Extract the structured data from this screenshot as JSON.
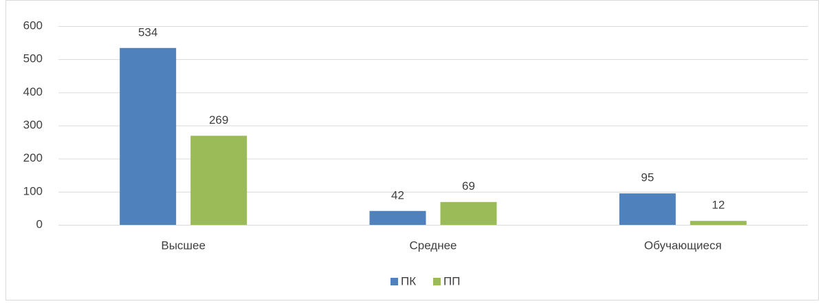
{
  "chart_data": {
    "type": "bar",
    "categories": [
      "Высшее",
      "Среднее",
      "Обучающиеся"
    ],
    "series": [
      {
        "name": "ПК",
        "color": "#4f81bd",
        "values": [
          534,
          42,
          95
        ]
      },
      {
        "name": "ПП",
        "color": "#9bbb59",
        "values": [
          269,
          69,
          12
        ]
      }
    ],
    "ylim": [
      0,
      600
    ],
    "yticks": [
      0,
      100,
      200,
      300,
      400,
      500,
      600
    ],
    "grid": true,
    "legend": "bottom"
  }
}
